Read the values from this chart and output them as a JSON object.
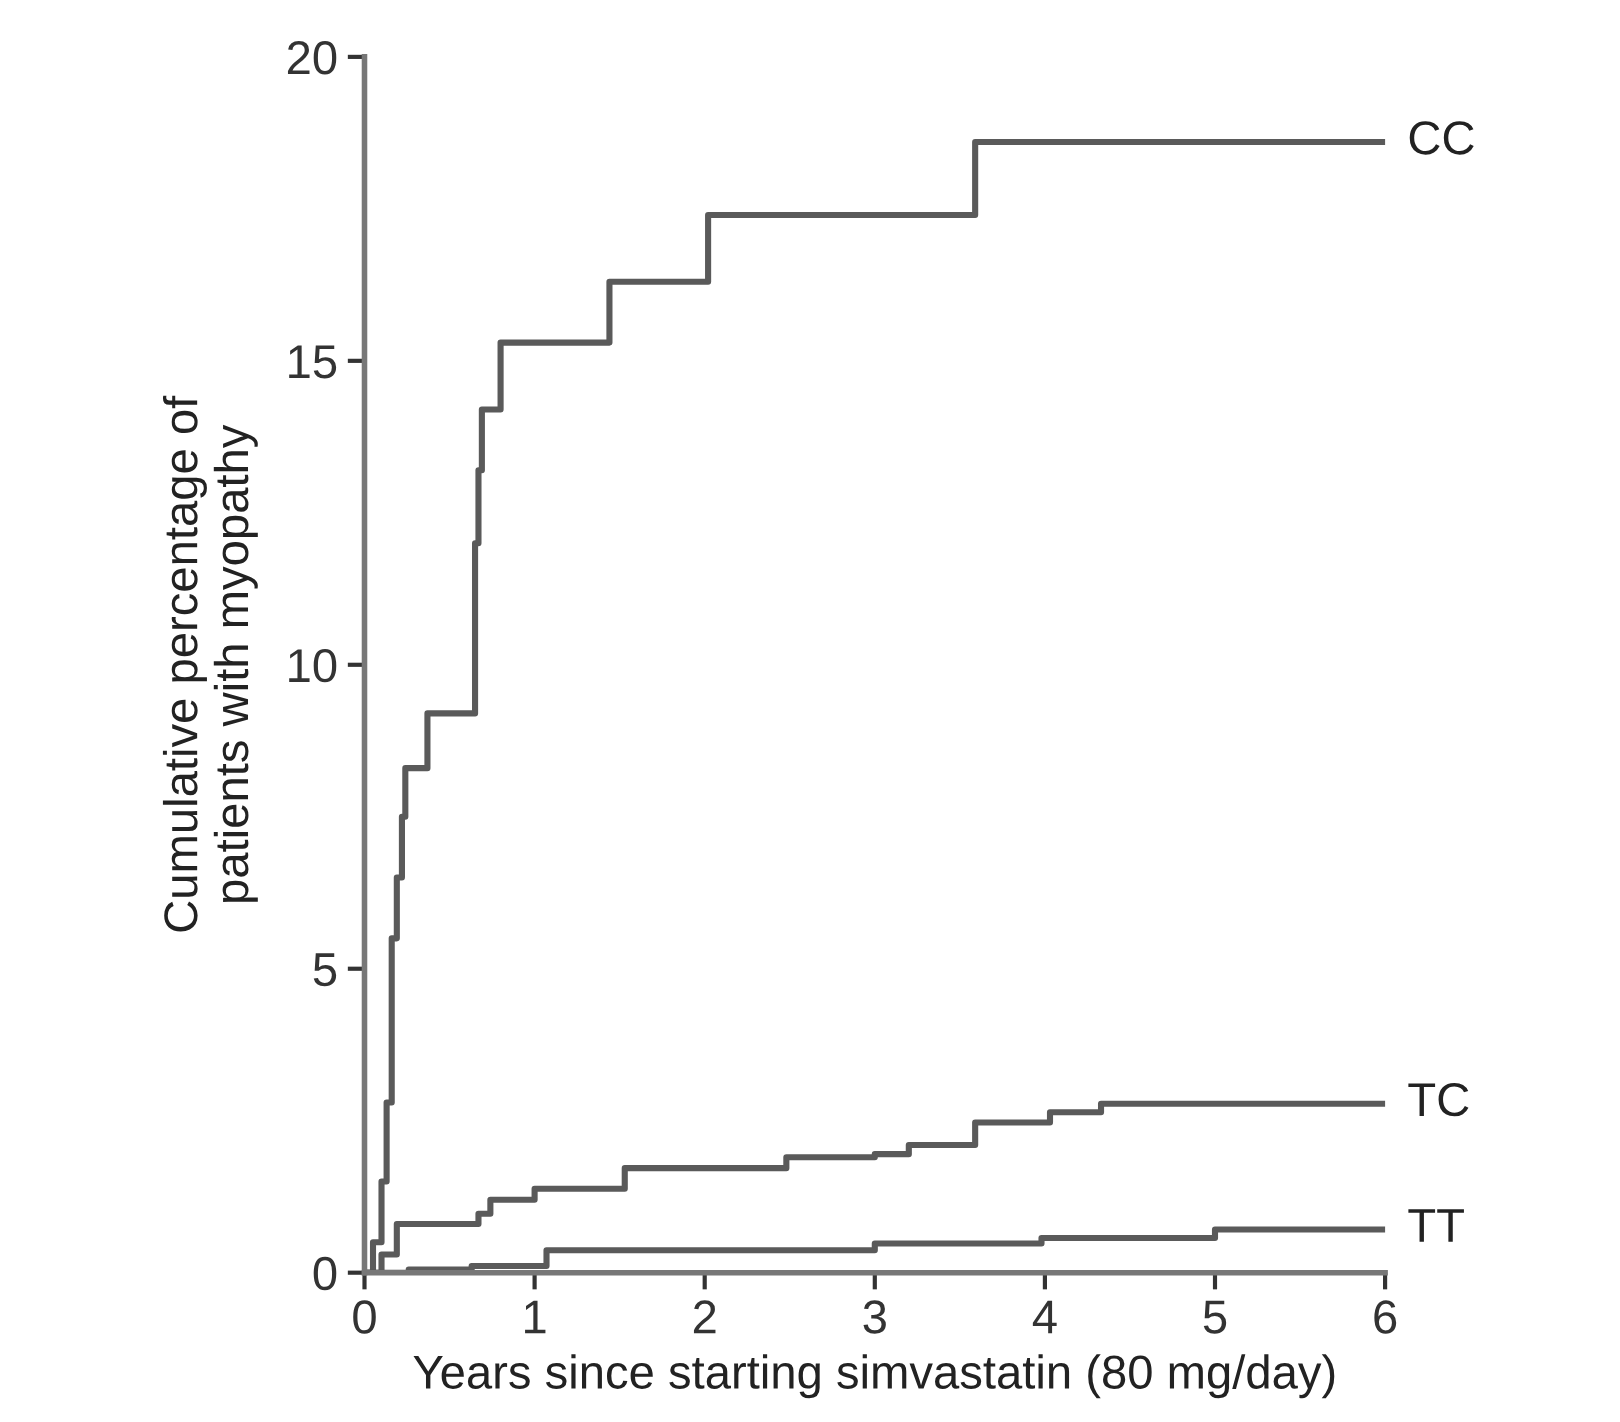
{
  "chart_data": {
    "type": "step",
    "xlabel": "Years since starting simvastatin (80 mg/day)",
    "ylabel": "Cumulative percentage of\npatients with myopathy",
    "xlim": [
      0,
      6
    ],
    "ylim": [
      0,
      20
    ],
    "xticks": [
      0,
      1,
      2,
      3,
      4,
      5,
      6
    ],
    "yticks": [
      0,
      5,
      10,
      15,
      20
    ],
    "grid": false,
    "legend": false,
    "marker": "none",
    "line_style": "solid",
    "series": [
      {
        "name": "CC",
        "color": "#5a5a5a",
        "x": [
          0,
          0.05,
          0.1,
          0.13,
          0.16,
          0.19,
          0.22,
          0.24,
          0.37,
          0.65,
          0.67,
          0.69,
          0.8,
          1.44,
          2.02,
          3.59,
          6
        ],
        "values": [
          0,
          0.5,
          1.5,
          2.8,
          5.5,
          6.5,
          7.5,
          8.3,
          9.2,
          12,
          13.2,
          14.2,
          15.3,
          16.3,
          17.4,
          18.6,
          18.6
        ]
      },
      {
        "name": "TC",
        "color": "#5a5a5a",
        "x": [
          0,
          0.1,
          0.19,
          0.67,
          0.74,
          1.0,
          1.53,
          2.48,
          3.0,
          3.2,
          3.59,
          4.03,
          4.33,
          6
        ],
        "values": [
          0,
          0.3,
          0.8,
          0.97,
          1.2,
          1.38,
          1.72,
          1.9,
          1.95,
          2.1,
          2.47,
          2.64,
          2.78,
          2.78
        ]
      },
      {
        "name": "TT",
        "color": "#5a5a5a",
        "x": [
          0,
          0.26,
          0.63,
          1.07,
          3.0,
          3.98,
          5.0,
          6
        ],
        "values": [
          0,
          0.05,
          0.11,
          0.37,
          0.48,
          0.57,
          0.71,
          0.71
        ]
      }
    ]
  }
}
